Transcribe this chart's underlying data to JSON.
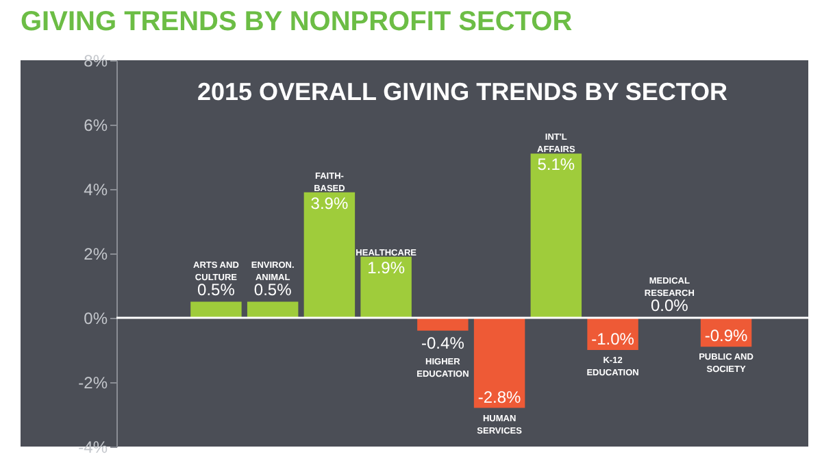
{
  "chart_data": {
    "type": "bar",
    "title": "GIVING TRENDS BY NONPROFIT SECTOR",
    "subtitle": "2015 OVERALL GIVING TRENDS BY SECTOR",
    "categories": [
      "ARTS AND\nCULTURE",
      "ENVIRON.\nANIMAL",
      "FAITH-\nBASED",
      "HEALTHCARE",
      "HIGHER\nEDUCATION",
      "HUMAN\nSERVICES",
      "INT'L\nAFFAIRS",
      "K-12\nEDUCATION",
      "MEDICAL\nRESEARCH",
      "PUBLIC AND\nSOCIETY"
    ],
    "values": [
      0.5,
      0.5,
      3.9,
      1.9,
      -0.4,
      -2.8,
      5.1,
      -1.0,
      0.0,
      -0.9
    ],
    "value_labels": [
      "0.5%",
      "0.5%",
      "3.9%",
      "1.9%",
      "-0.4%",
      "-2.8%",
      "5.1%",
      "-1.0%",
      "0.0%",
      "-0.9%"
    ],
    "colors": [
      "#9fcc3b",
      "#9fcc3b",
      "#9fcc3b",
      "#9fcc3b",
      "#ee5a36",
      "#ee5a36",
      "#9fcc3b",
      "#ee5a36",
      "#9fcc3b",
      "#ee5a36"
    ],
    "ylim": [
      -4,
      8
    ],
    "yticks": [
      {
        "value": -4,
        "label": "-4%"
      },
      {
        "value": -2,
        "label": "-2%"
      },
      {
        "value": 0,
        "label": "0%"
      },
      {
        "value": 2,
        "label": "2%"
      },
      {
        "value": 4,
        "label": "4%"
      },
      {
        "value": 6,
        "label": "6%"
      },
      {
        "value": 8,
        "label": "8%"
      }
    ],
    "tick_labels": "y",
    "grid": false,
    "ref_lines": [
      {
        "axis": "y",
        "value": 0,
        "color": "#ffffff"
      }
    ]
  }
}
